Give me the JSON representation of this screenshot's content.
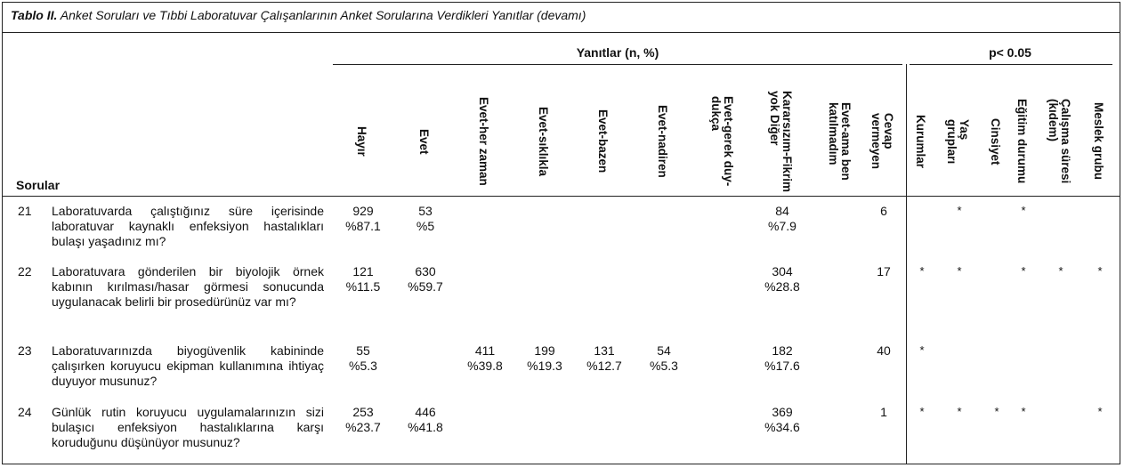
{
  "caption": {
    "label": "Tablo II.",
    "text": " Anket Soruları ve Tıbbi Laboratuvar Çalışanlarının Anket Sorularına Verdikleri Yanıtlar (devamı)"
  },
  "headers": {
    "yanitlar": "Yanıtlar (n, %)",
    "p": "p< 0.05",
    "sorular": "Sorular",
    "answer_cols": [
      [
        "Hayır"
      ],
      [
        "Evet"
      ],
      [
        "Evet-her zaman"
      ],
      [
        "Evet-sıklıkla"
      ],
      [
        "Evet-bazen"
      ],
      [
        "Evet-nadiren"
      ],
      [
        "Evet-gerek duy-",
        "dukça"
      ],
      [
        "Kararsızım-Fikrim",
        "yok Diğer"
      ],
      [
        "Evet-ama ben",
        "katılmadım"
      ],
      [
        "Cevap",
        "vermeyen"
      ]
    ],
    "p_cols": [
      [
        "Kurumlar"
      ],
      [
        "Yaş",
        "grupları"
      ],
      [
        "Cinsiyet"
      ],
      [
        "Eğitim durumu"
      ],
      [
        "Çalışma süresi",
        "(kıdem)"
      ],
      [
        "Meslek grubu"
      ]
    ]
  },
  "rows": [
    {
      "num": "21",
      "question": "Laboratuvarda çalıştığınız süre içerisinde laboratuvar kaynaklı enfeksiyon hastalıkları bulaşı yaşadınız mı?",
      "hayir": [
        "929",
        "%87.1"
      ],
      "evet": [
        "53",
        "%5"
      ],
      "her_zaman": [
        "",
        ""
      ],
      "siklikla": [
        "",
        ""
      ],
      "bazen": [
        "",
        ""
      ],
      "nadiren": [
        "",
        ""
      ],
      "kararsiz": [
        "84",
        "%7.9"
      ],
      "cevap": "6",
      "p": [
        "",
        "*",
        "",
        "*",
        "",
        ""
      ]
    },
    {
      "num": "22",
      "question": "Laboratuvara gönderilen bir biyolojik örnek kabının kırılması/hasar görmesi sonucunda uygulanacak belirli bir prosedürünüz var mı?",
      "hayir": [
        "121",
        "%11.5"
      ],
      "evet": [
        "630",
        "%59.7"
      ],
      "her_zaman": [
        "",
        ""
      ],
      "siklikla": [
        "",
        ""
      ],
      "bazen": [
        "",
        ""
      ],
      "nadiren": [
        "",
        ""
      ],
      "kararsiz": [
        "304",
        "%28.8"
      ],
      "cevap": "17",
      "p": [
        "*",
        "*",
        "",
        "*",
        "*",
        "*"
      ]
    },
    {
      "num": "23",
      "question": "Laboratuvarınızda biyogüvenlik kabininde çalışırken koruyucu ekipman kullanımına ihtiyaç duyuyor musunuz?",
      "hayir": [
        "55",
        "%5.3"
      ],
      "evet": [
        "",
        ""
      ],
      "her_zaman": [
        "411",
        "%39.8"
      ],
      "siklikla": [
        "199",
        "%19.3"
      ],
      "bazen": [
        "131",
        "%12.7"
      ],
      "nadiren": [
        "54",
        "%5.3"
      ],
      "kararsiz": [
        "182",
        "%17.6"
      ],
      "cevap": "40",
      "p": [
        "*",
        "",
        "",
        "",
        "",
        ""
      ]
    },
    {
      "num": "24",
      "question": "Günlük rutin koruyucu uygulamalarınızın sizi bulaşıcı enfeksiyon hastalıklarına karşı koruduğunu düşünüyor musunuz?",
      "hayir": [
        "253",
        "%23.7"
      ],
      "evet": [
        "446",
        "%41.8"
      ],
      "her_zaman": [
        "",
        ""
      ],
      "siklikla": [
        "",
        ""
      ],
      "bazen": [
        "",
        ""
      ],
      "nadiren": [
        "",
        ""
      ],
      "kararsiz": [
        "369",
        "%34.6"
      ],
      "cevap": "1",
      "p": [
        "*",
        "*",
        "*",
        "*",
        "",
        "*"
      ]
    }
  ]
}
